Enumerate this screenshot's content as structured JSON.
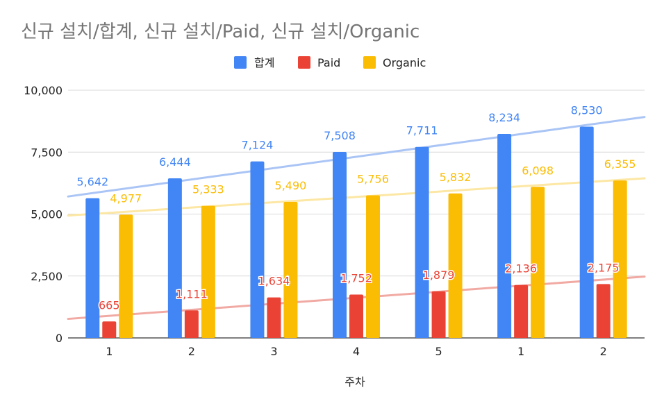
{
  "chart_data": {
    "type": "bar",
    "title": "신규 설치/합계, 신규 설치/Paid, 신규 설치/Organic",
    "xlabel": "주차",
    "ylabel": "",
    "categories": [
      "1",
      "2",
      "3",
      "4",
      "5",
      "1",
      "2"
    ],
    "ylim": [
      0,
      10000
    ],
    "yticks": [
      "0",
      "2,500",
      "5,000",
      "7,500",
      "10,000"
    ],
    "yticks_values": [
      0,
      2500,
      5000,
      7500,
      10000
    ],
    "grid": true,
    "legend_position": "top",
    "trendlines": true,
    "series": [
      {
        "name": "합계",
        "color": "#4285f4",
        "trend_color": "#aac5f5",
        "values": [
          5642,
          6444,
          7124,
          7508,
          7711,
          8234,
          8530
        ],
        "labels": [
          "5,642",
          "6,444",
          "7,124",
          "7,508",
          "7,711",
          "8,234",
          "8,530"
        ]
      },
      {
        "name": "Paid",
        "color": "#ea4335",
        "trend_color": "#f1aaa3",
        "values": [
          665,
          1111,
          1634,
          1752,
          1879,
          2136,
          2175
        ],
        "labels": [
          "665",
          "1,111",
          "1,634",
          "1,752",
          "1,879",
          "2,136",
          "2,175"
        ]
      },
      {
        "name": "Organic",
        "color": "#fbbc04",
        "trend_color": "#fce7a4",
        "values": [
          4977,
          5333,
          5490,
          5756,
          5832,
          6098,
          6355
        ],
        "labels": [
          "4,977",
          "5,333",
          "5,490",
          "5,756",
          "5,832",
          "6,098",
          "6,355"
        ]
      }
    ]
  }
}
